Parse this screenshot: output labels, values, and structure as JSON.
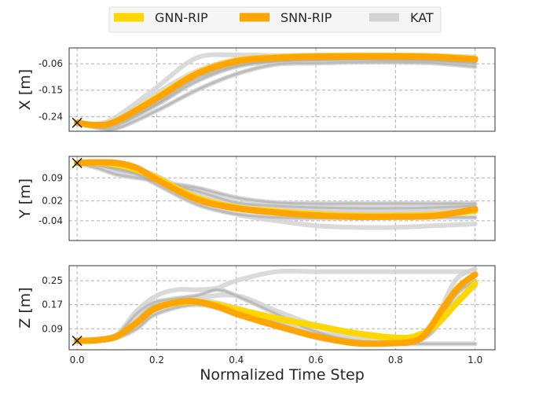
{
  "chart_data": {
    "type": "line",
    "xlabel": "Normalized Time Step",
    "xlim": [
      -0.02,
      1.05
    ],
    "xticks": [
      "0.0",
      "0.2",
      "0.4",
      "0.6",
      "0.8",
      "1.0"
    ],
    "xtick_values": [
      0,
      0.2,
      0.4,
      0.6,
      0.8,
      1.0
    ],
    "legend": {
      "placement": "top-center",
      "entries": [
        {
          "name": "GNN-RIP",
          "color": "#FFD700"
        },
        {
          "name": "SNN-RIP",
          "color": "#FFA500"
        },
        {
          "name": "KAT",
          "color": "#D3D3D3"
        }
      ]
    },
    "grid": true,
    "panels": [
      {
        "id": "x",
        "ylabel": "X [m]",
        "ylim": [
          -0.29,
          -0.006
        ],
        "yticks": [
          "-0.06",
          "-0.15",
          "-0.24"
        ],
        "ytick_values": [
          -0.06,
          -0.15,
          -0.24
        ],
        "start_marker": {
          "x": 0,
          "y": -0.261
        },
        "series": [
          {
            "name": "GNN-RIP",
            "x": [
              0,
              0.05,
              0.1,
              0.2,
              0.3,
              0.4,
              0.5,
              0.6,
              0.7,
              0.8,
              0.9,
              1.0
            ],
            "y": [
              -0.261,
              -0.269,
              -0.255,
              -0.175,
              -0.093,
              -0.05,
              -0.038,
              -0.034,
              -0.033,
              -0.033,
              -0.035,
              -0.043
            ]
          },
          {
            "name": "SNN-RIP",
            "x": [
              0,
              0.05,
              0.1,
              0.2,
              0.3,
              0.4,
              0.5,
              0.6,
              0.7,
              0.8,
              0.9,
              1.0
            ],
            "y": [
              -0.261,
              -0.269,
              -0.255,
              -0.178,
              -0.095,
              -0.052,
              -0.04,
              -0.036,
              -0.035,
              -0.035,
              -0.037,
              -0.045
            ]
          }
        ],
        "background_series": [
          {
            "x": [
              0,
              0.05,
              0.1,
              0.2,
              0.3,
              0.4,
              0.5,
              0.6,
              0.7,
              0.8,
              0.9,
              1.0
            ],
            "y": [
              -0.261,
              -0.27,
              -0.25,
              -0.16,
              -0.085,
              -0.045,
              -0.036,
              -0.032,
              -0.03,
              -0.031,
              -0.034,
              -0.04
            ]
          },
          {
            "x": [
              0,
              0.05,
              0.1,
              0.2,
              0.3,
              0.4,
              0.5,
              0.6,
              0.7,
              0.8,
              0.9,
              1.0
            ],
            "y": [
              -0.261,
              -0.275,
              -0.27,
              -0.2,
              -0.12,
              -0.07,
              -0.052,
              -0.048,
              -0.046,
              -0.048,
              -0.05,
              -0.06
            ]
          },
          {
            "x": [
              0,
              0.05,
              0.1,
              0.2,
              0.3,
              0.4,
              0.5,
              0.6,
              0.7,
              0.8,
              0.9,
              1.0
            ],
            "y": [
              -0.261,
              -0.265,
              -0.24,
              -0.14,
              -0.04,
              -0.03,
              -0.032,
              -0.03,
              -0.029,
              -0.03,
              -0.032,
              -0.037
            ]
          },
          {
            "x": [
              0,
              0.05,
              0.1,
              0.2,
              0.3,
              0.4,
              0.5,
              0.6,
              0.7,
              0.8,
              0.9,
              1.0
            ],
            "y": [
              -0.261,
              -0.278,
              -0.28,
              -0.22,
              -0.15,
              -0.095,
              -0.062,
              -0.058,
              -0.055,
              -0.055,
              -0.058,
              -0.07
            ]
          },
          {
            "x": [
              0,
              0.05,
              0.1,
              0.2,
              0.3,
              0.4,
              0.5,
              0.6,
              0.7,
              0.8,
              0.9,
              1.0
            ],
            "y": [
              -0.261,
              -0.268,
              -0.258,
              -0.185,
              -0.1,
              -0.055,
              -0.044,
              -0.04,
              -0.038,
              -0.04,
              -0.042,
              -0.05
            ]
          },
          {
            "x": [
              0,
              0.05,
              0.1,
              0.2,
              0.3,
              0.4,
              0.5,
              0.6,
              0.7,
              0.8,
              0.9,
              1.0
            ],
            "y": [
              -0.261,
              -0.272,
              -0.262,
              -0.195,
              -0.11,
              -0.066,
              -0.05,
              -0.045,
              -0.043,
              -0.044,
              -0.047,
              -0.055
            ]
          }
        ]
      },
      {
        "id": "y",
        "ylabel": "Y [m]",
        "ylim": [
          -0.1,
          0.155
        ],
        "yticks": [
          "0.09",
          "0.02",
          "-0.04"
        ],
        "ytick_values": [
          0.09,
          0.02,
          -0.04
        ],
        "start_marker": {
          "x": 0,
          "y": 0.135
        },
        "series": [
          {
            "name": "GNN-RIP",
            "x": [
              0,
              0.05,
              0.1,
              0.15,
              0.2,
              0.3,
              0.4,
              0.5,
              0.6,
              0.7,
              0.8,
              0.9,
              1.0
            ],
            "y": [
              0.135,
              0.136,
              0.13,
              0.115,
              0.09,
              0.03,
              0.0,
              -0.012,
              -0.02,
              -0.025,
              -0.025,
              -0.022,
              -0.01
            ]
          },
          {
            "name": "SNN-RIP",
            "x": [
              0,
              0.05,
              0.1,
              0.15,
              0.2,
              0.3,
              0.4,
              0.5,
              0.6,
              0.7,
              0.8,
              0.9,
              1.0
            ],
            "y": [
              0.135,
              0.137,
              0.135,
              0.12,
              0.085,
              0.025,
              -0.002,
              -0.015,
              -0.024,
              -0.028,
              -0.028,
              -0.025,
              -0.005
            ]
          }
        ],
        "background_series": [
          {
            "x": [
              0,
              0.05,
              0.1,
              0.15,
              0.2,
              0.3,
              0.4,
              0.5,
              0.6,
              0.7,
              0.8,
              0.9,
              1.0
            ],
            "y": [
              0.135,
              0.125,
              0.11,
              0.1,
              0.085,
              0.02,
              -0.02,
              -0.04,
              -0.055,
              -0.06,
              -0.06,
              -0.055,
              -0.05
            ]
          },
          {
            "x": [
              0,
              0.05,
              0.1,
              0.15,
              0.2,
              0.3,
              0.4,
              0.5,
              0.6,
              0.7,
              0.8,
              0.9,
              1.0
            ],
            "y": [
              0.135,
              0.13,
              0.12,
              0.105,
              0.08,
              0.06,
              0.03,
              0.015,
              0.012,
              0.012,
              0.012,
              0.012,
              0.012
            ]
          },
          {
            "x": [
              0,
              0.05,
              0.1,
              0.15,
              0.2,
              0.3,
              0.4,
              0.5,
              0.6,
              0.7,
              0.8,
              0.9,
              1.0
            ],
            "y": [
              0.135,
              0.138,
              0.132,
              0.12,
              0.095,
              0.04,
              0.005,
              -0.005,
              -0.01,
              -0.012,
              -0.012,
              -0.01,
              0.0
            ]
          },
          {
            "x": [
              0,
              0.05,
              0.1,
              0.15,
              0.2,
              0.3,
              0.4,
              0.5,
              0.6,
              0.7,
              0.8,
              0.9,
              1.0
            ],
            "y": [
              0.135,
              0.128,
              0.115,
              0.1,
              0.07,
              0.01,
              -0.02,
              -0.03,
              -0.032,
              -0.032,
              -0.03,
              -0.03,
              -0.03
            ]
          },
          {
            "x": [
              0,
              0.05,
              0.1,
              0.15,
              0.2,
              0.3,
              0.4,
              0.5,
              0.6,
              0.7,
              0.8,
              0.9,
              1.0
            ],
            "y": [
              0.135,
              0.133,
              0.128,
              0.115,
              0.09,
              0.035,
              0.0,
              -0.01,
              -0.015,
              -0.018,
              -0.018,
              -0.016,
              -0.01
            ]
          },
          {
            "x": [
              0,
              0.05,
              0.1,
              0.15,
              0.2,
              0.3,
              0.4,
              0.5,
              0.6,
              0.7,
              0.8,
              0.9,
              1.0
            ],
            "y": [
              0.135,
              0.12,
              0.1,
              0.09,
              0.08,
              0.05,
              0.015,
              0.005,
              0.0,
              -0.002,
              -0.002,
              0.0,
              0.005
            ]
          }
        ]
      },
      {
        "id": "z",
        "ylabel": "Z [m]",
        "ylim": [
          0.02,
          0.3
        ],
        "yticks": [
          "0.25",
          "0.17",
          "0.09"
        ],
        "ytick_values": [
          0.25,
          0.17,
          0.09
        ],
        "start_marker": {
          "x": 0,
          "y": 0.05
        },
        "series": [
          {
            "name": "GNN-RIP",
            "x": [
              0,
              0.05,
              0.1,
              0.15,
              0.2,
              0.28,
              0.35,
              0.4,
              0.5,
              0.6,
              0.7,
              0.8,
              0.85,
              0.9,
              0.95,
              1.0
            ],
            "y": [
              0.05,
              0.052,
              0.065,
              0.11,
              0.16,
              0.18,
              0.17,
              0.155,
              0.125,
              0.1,
              0.075,
              0.06,
              0.065,
              0.1,
              0.17,
              0.24
            ]
          },
          {
            "name": "SNN-RIP",
            "x": [
              0,
              0.05,
              0.1,
              0.15,
              0.2,
              0.28,
              0.35,
              0.4,
              0.5,
              0.6,
              0.7,
              0.8,
              0.85,
              0.88,
              0.92,
              0.96,
              1.0
            ],
            "y": [
              0.05,
              0.052,
              0.065,
              0.11,
              0.16,
              0.182,
              0.165,
              0.14,
              0.1,
              0.065,
              0.042,
              0.042,
              0.05,
              0.08,
              0.16,
              0.23,
              0.27
            ]
          }
        ],
        "background_series": [
          {
            "x": [
              0,
              0.05,
              0.1,
              0.15,
              0.2,
              0.25,
              0.3,
              0.35,
              0.4,
              0.5,
              0.6,
              0.7,
              0.8,
              0.9,
              1.0
            ],
            "y": [
              0.05,
              0.055,
              0.07,
              0.15,
              0.2,
              0.22,
              0.22,
              0.225,
              0.25,
              0.28,
              0.28,
              0.28,
              0.28,
              0.28,
              0.28
            ]
          },
          {
            "x": [
              0,
              0.05,
              0.1,
              0.15,
              0.2,
              0.3,
              0.4,
              0.5,
              0.6,
              0.7,
              0.8,
              0.85,
              0.9,
              0.95,
              1.0
            ],
            "y": [
              0.05,
              0.052,
              0.06,
              0.09,
              0.14,
              0.17,
              0.14,
              0.1,
              0.06,
              0.042,
              0.04,
              0.04,
              0.04,
              0.04,
              0.04
            ]
          },
          {
            "x": [
              0,
              0.05,
              0.1,
              0.15,
              0.2,
              0.3,
              0.4,
              0.5,
              0.6,
              0.7,
              0.8,
              0.85,
              0.9,
              0.95,
              1.0
            ],
            "y": [
              0.05,
              0.05,
              0.06,
              0.1,
              0.15,
              0.19,
              0.2,
              0.15,
              0.1,
              0.06,
              0.045,
              0.05,
              0.12,
              0.25,
              0.29
            ]
          },
          {
            "x": [
              0,
              0.05,
              0.1,
              0.15,
              0.2,
              0.3,
              0.4,
              0.5,
              0.6,
              0.7,
              0.8,
              0.85,
              0.9,
              0.95,
              1.0
            ],
            "y": [
              0.05,
              0.053,
              0.065,
              0.12,
              0.17,
              0.175,
              0.15,
              0.11,
              0.07,
              0.045,
              0.042,
              0.045,
              0.09,
              0.2,
              0.25
            ]
          },
          {
            "x": [
              0,
              0.05,
              0.1,
              0.15,
              0.2,
              0.3,
              0.4,
              0.5,
              0.6,
              0.7,
              0.8,
              0.85,
              0.9,
              0.95,
              1.0
            ],
            "y": [
              0.05,
              0.052,
              0.062,
              0.1,
              0.155,
              0.185,
              0.16,
              0.12,
              0.08,
              0.05,
              0.043,
              0.05,
              0.1,
              0.18,
              0.23
            ]
          },
          {
            "x": [
              0,
              0.05,
              0.1,
              0.15,
              0.2,
              0.3,
              0.35,
              0.4,
              0.5,
              0.6,
              0.7,
              0.8,
              0.85,
              0.9,
              0.95,
              1.0
            ],
            "y": [
              0.05,
              0.055,
              0.07,
              0.14,
              0.18,
              0.2,
              0.22,
              0.2,
              0.14,
              0.08,
              0.05,
              0.045,
              0.055,
              0.12,
              0.22,
              0.27
            ]
          }
        ]
      }
    ]
  }
}
